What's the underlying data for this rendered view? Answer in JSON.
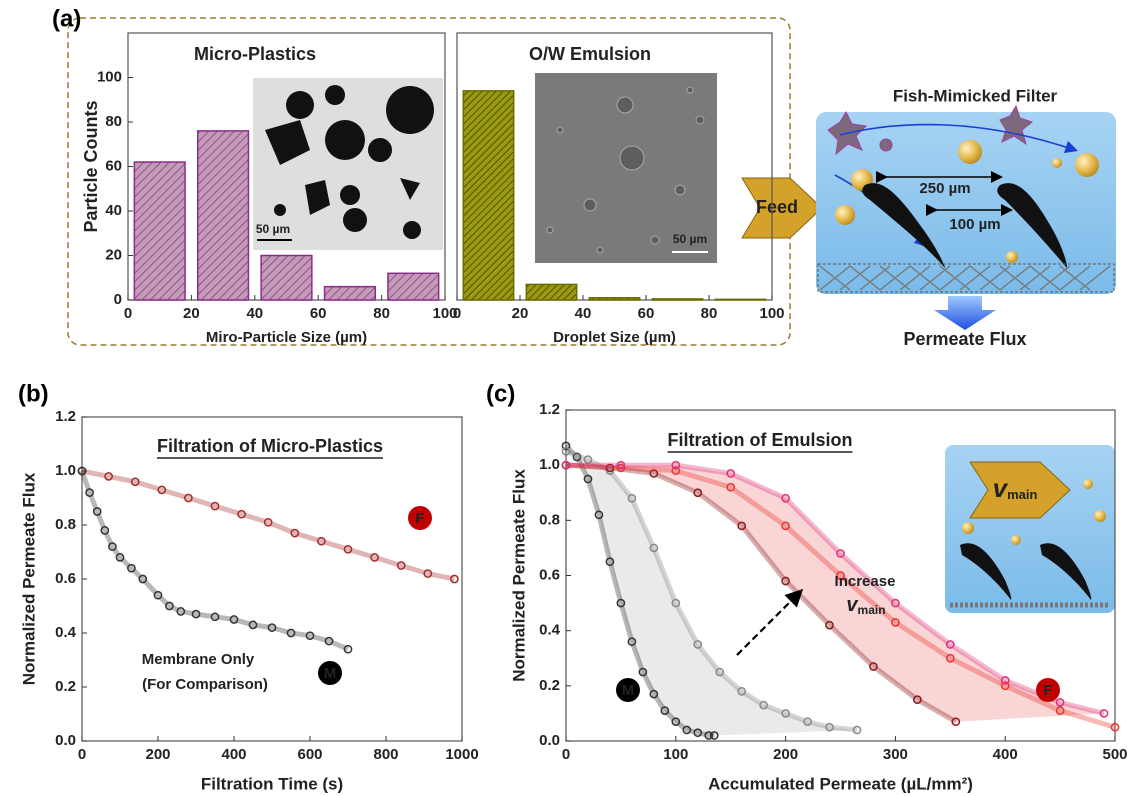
{
  "panel_labels": [
    "(a)",
    "(b)",
    "(c)"
  ],
  "schematic": {
    "title": "Fish-Mimicked Filter",
    "feed": "Feed",
    "spacing_large": "250 µm",
    "spacing_small": "100 µm",
    "output": "Permeate Flux"
  },
  "chart_data": [
    {
      "type": "histogram",
      "title": "Micro-Plastics",
      "xlabel": "Miro-Particle Size (µm)",
      "ylabel": "Particle Counts",
      "inset_scale": "50 µm",
      "bins": [
        0,
        20,
        40,
        60,
        80,
        100
      ],
      "values": [
        62,
        76,
        20,
        6,
        12
      ],
      "color": "#8b2d8b",
      "xlim": [
        0,
        100
      ],
      "xticks": [
        0,
        20,
        40,
        60,
        80,
        100
      ],
      "ylim": [
        0,
        120
      ],
      "yticks": [
        0,
        20,
        40,
        60,
        80,
        100
      ]
    },
    {
      "type": "histogram",
      "title": "O/W Emulsion",
      "xlabel": "Droplet Size (µm)",
      "inset_scale": "50 µm",
      "bins": [
        0,
        20,
        40,
        60,
        80,
        100
      ],
      "values": [
        94,
        7,
        1,
        0.5,
        0.3
      ],
      "color": "#6b6b00",
      "xlim": [
        0,
        100
      ],
      "xticks": [
        0,
        20,
        40,
        60,
        80,
        100
      ],
      "ylim": [
        0,
        120
      ]
    },
    {
      "type": "scatter",
      "title": "Filtration of Micro-Plastics",
      "xlabel": "Filtration Time (s)",
      "ylabel": "Normalized Permeate Flux",
      "annotations": {
        "F": "F",
        "M": "M",
        "note_line1": "Membrane Only",
        "note_line2": "(For Comparison)"
      },
      "xlim": [
        0,
        1000
      ],
      "xticks": [
        0,
        200,
        400,
        600,
        800,
        1000
      ],
      "ylim": [
        0,
        1.2
      ],
      "yticks": [
        {
          "value": 0,
          "label": "0.0"
        },
        {
          "value": 0.2,
          "label": "0.2"
        },
        {
          "value": 0.4,
          "label": "0.4"
        },
        {
          "value": 0.6,
          "label": "0.6"
        },
        {
          "value": 0.8,
          "label": "0.8"
        },
        {
          "value": 1,
          "label": "1.0"
        },
        {
          "value": 1.2,
          "label": "1.2"
        }
      ],
      "series": [
        {
          "color": "#a52a2a",
          "x": [
            0,
            70,
            140,
            210,
            280,
            350,
            420,
            490,
            560,
            630,
            700,
            770,
            840,
            910,
            980
          ],
          "values": [
            1.0,
            0.98,
            0.96,
            0.93,
            0.9,
            0.87,
            0.84,
            0.81,
            0.77,
            0.74,
            0.71,
            0.68,
            0.65,
            0.62,
            0.6
          ]
        },
        {
          "color": "#333333",
          "x": [
            0,
            20,
            40,
            60,
            80,
            100,
            130,
            160,
            200,
            230,
            260,
            300,
            350,
            400,
            450,
            500,
            550,
            600,
            650,
            700
          ],
          "values": [
            1.0,
            0.92,
            0.85,
            0.78,
            0.72,
            0.68,
            0.64,
            0.6,
            0.54,
            0.5,
            0.48,
            0.47,
            0.46,
            0.45,
            0.43,
            0.42,
            0.4,
            0.39,
            0.37,
            0.34
          ]
        }
      ]
    },
    {
      "type": "scatter",
      "title": "Filtration of Emulsion",
      "xlabel": "Accumulated Permeate (µL/mm²)",
      "ylabel": "Normalized Permeate Flux",
      "annotations": {
        "F": "F",
        "M": "M",
        "increase": "Increase",
        "symbol": "v",
        "subscript": "main"
      },
      "xlim": [
        0,
        500
      ],
      "xticks": [
        0,
        100,
        200,
        300,
        400,
        500
      ],
      "ylim": [
        0,
        1.2
      ],
      "yticks": [
        {
          "value": 0,
          "label": "0.0"
        },
        {
          "value": 0.2,
          "label": "0.2"
        },
        {
          "value": 0.4,
          "label": "0.4"
        },
        {
          "value": 0.6,
          "label": "0.6"
        },
        {
          "value": 0.8,
          "label": "0.8"
        },
        {
          "value": 1,
          "label": "1.0"
        },
        {
          "value": 1.2,
          "label": "1.2"
        }
      ],
      "series": [
        {
          "color": "#333333",
          "x": [
            0,
            10,
            20,
            30,
            40,
            50,
            60,
            70,
            80,
            90,
            100,
            110,
            120,
            130,
            135
          ],
          "values": [
            1.07,
            1.03,
            0.95,
            0.82,
            0.65,
            0.5,
            0.36,
            0.25,
            0.17,
            0.11,
            0.07,
            0.04,
            0.03,
            0.02,
            0.02
          ]
        },
        {
          "color": "#888888",
          "x": [
            0,
            20,
            40,
            60,
            80,
            100,
            120,
            140,
            160,
            180,
            200,
            220,
            240,
            265
          ],
          "values": [
            1.05,
            1.02,
            0.98,
            0.88,
            0.7,
            0.5,
            0.35,
            0.25,
            0.18,
            0.13,
            0.1,
            0.07,
            0.05,
            0.04
          ]
        },
        {
          "color": "#8b1a1a",
          "x": [
            0,
            40,
            80,
            120,
            160,
            200,
            240,
            280,
            320,
            355
          ],
          "values": [
            1.0,
            0.99,
            0.97,
            0.9,
            0.78,
            0.58,
            0.42,
            0.27,
            0.15,
            0.07
          ]
        },
        {
          "color": "#e8352f",
          "x": [
            0,
            50,
            100,
            150,
            200,
            250,
            300,
            350,
            400,
            450,
            500
          ],
          "values": [
            1.0,
            0.99,
            0.98,
            0.92,
            0.78,
            0.6,
            0.43,
            0.3,
            0.2,
            0.11,
            0.05
          ]
        },
        {
          "color": "#e0307a",
          "x": [
            0,
            50,
            100,
            150,
            200,
            250,
            300,
            350,
            400,
            450,
            490
          ],
          "values": [
            1.0,
            1.0,
            1.0,
            0.97,
            0.88,
            0.68,
            0.5,
            0.35,
            0.22,
            0.14,
            0.1
          ]
        }
      ]
    }
  ]
}
